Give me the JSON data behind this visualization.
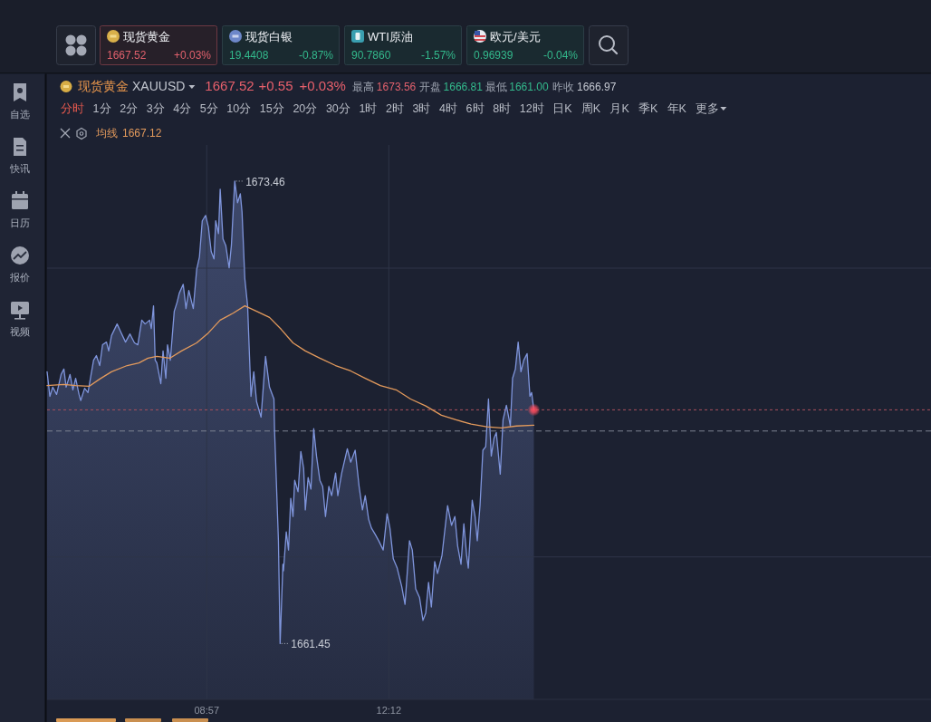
{
  "chart_data": {
    "type": "area",
    "title": "现货黄金",
    "subtitle": "XAUUSD",
    "annotations": [
      "现货黄金",
      "1667.52",
      "+0.03%",
      "现货白银",
      "19.4408",
      "-0.87%",
      "WTI原油",
      "90.7860",
      "-1.57%",
      "欧元/美元",
      "0.96939",
      "-0.04%",
      "1667.52",
      "+0.55",
      "+0.03%",
      "最高",
      "1673.56",
      "开盘",
      "1666.81",
      "最低",
      "1661.00",
      "昨收",
      "1666.97",
      "分时",
      "1分",
      "2分",
      "3分",
      "4分",
      "5分",
      "10分",
      "15分",
      "20分",
      "30分",
      "1时",
      "2时",
      "3时",
      "4时",
      "6时",
      "8时",
      "12时",
      "日K",
      "周K",
      "月K",
      "季K",
      "年K",
      "更多",
      "1667.12",
      "自选",
      "快讯",
      "日历",
      "报价",
      "视频"
    ],
    "xlim": [
      6.1,
      21.88
    ],
    "xticks": [
      {
        "value": 8.95,
        "label": "08:57"
      },
      {
        "value": 12.2,
        "label": "12:12"
      }
    ],
    "ylim": [
      1660.0,
      1674.4
    ],
    "yticks": [
      {
        "value": 1671.2,
        "label": null
      },
      {
        "value": 1663.7,
        "label": null
      }
    ],
    "tick_labels": "x",
    "grid": true,
    "legend": "top left",
    "ref_lines": [
      {
        "axis": "y",
        "value": 1667.52,
        "color": "#a8505c",
        "line_style": "dotted"
      },
      {
        "axis": "y",
        "value": 1666.97,
        "color": "#7d8291",
        "line_style": "dashed"
      }
    ],
    "series": [
      {
        "color": "#7f95dc",
        "x": [
          6.1,
          6.15,
          6.2,
          6.27,
          6.35,
          6.4,
          6.44,
          6.51,
          6.56,
          6.61,
          6.67,
          6.7,
          6.77,
          6.83,
          6.88,
          6.93,
          6.98,
          7.04,
          7.09,
          7.16,
          7.2,
          7.25,
          7.35,
          7.41,
          7.5,
          7.58,
          7.66,
          7.72,
          7.79,
          7.85,
          7.93,
          7.96,
          8.0,
          8.03,
          8.06,
          8.13,
          8.17,
          8.22,
          8.25,
          8.3,
          8.37,
          8.42,
          8.46,
          8.53,
          8.58,
          8.63,
          8.71,
          8.77,
          8.82,
          8.87,
          8.93,
          8.98,
          9.03,
          9.08,
          9.11,
          9.16,
          9.19,
          9.24,
          9.29,
          9.35,
          9.39,
          9.45,
          9.5,
          9.55,
          9.58,
          9.63,
          9.68,
          9.74,
          9.79,
          9.84,
          9.92,
          10.0,
          10.07,
          10.15,
          10.16,
          10.23,
          10.26,
          10.31,
          10.32,
          10.37,
          10.41,
          10.45,
          10.49,
          10.52,
          10.58,
          10.63,
          10.68,
          10.71,
          10.76,
          10.81,
          10.86,
          10.91,
          10.97,
          11.02,
          11.07,
          11.13,
          11.18,
          11.25,
          11.29,
          11.36,
          11.46,
          11.52,
          11.6,
          11.67,
          11.73,
          11.78,
          11.84,
          11.89,
          11.96,
          12.02,
          12.1,
          12.17,
          12.22,
          12.28,
          12.35,
          12.43,
          12.49,
          12.57,
          12.62,
          12.68,
          12.75,
          12.81,
          12.86,
          12.91,
          12.96,
          13.02,
          13.07,
          13.15,
          13.25,
          13.32,
          13.38,
          13.43,
          13.49,
          13.54,
          13.59,
          13.62,
          13.69,
          13.74,
          13.78,
          13.83,
          13.88,
          13.93,
          13.98,
          14.03,
          14.08,
          14.12,
          14.19,
          14.24,
          14.3,
          14.37,
          14.41,
          14.46,
          14.51,
          14.56,
          14.61,
          14.67,
          14.72,
          14.75,
          14.79
        ],
        "values": [
          1668.51,
          1667.87,
          1668.11,
          1667.92,
          1668.44,
          1668.58,
          1668.11,
          1668.44,
          1668.04,
          1668.34,
          1667.92,
          1667.76,
          1668.08,
          1667.97,
          1668.39,
          1668.81,
          1668.93,
          1668.67,
          1669.21,
          1669.28,
          1669.05,
          1669.45,
          1669.75,
          1669.56,
          1669.28,
          1669.49,
          1669.26,
          1669.21,
          1669.85,
          1669.75,
          1669.85,
          1669.63,
          1670.22,
          1668.81,
          1668.74,
          1668.2,
          1669.05,
          1668.34,
          1669.21,
          1668.81,
          1670.08,
          1670.31,
          1670.55,
          1670.78,
          1670.15,
          1670.62,
          1670.15,
          1671.16,
          1671.49,
          1672.43,
          1672.57,
          1672.26,
          1671.63,
          1671.44,
          1672.43,
          1672.1,
          1673.25,
          1671.96,
          1671.79,
          1671.21,
          1671.79,
          1673.46,
          1672.9,
          1673.13,
          1672.66,
          1670.93,
          1670.22,
          1667.87,
          1668.51,
          1667.73,
          1667.33,
          1668.91,
          1668.11,
          1667.8,
          1667.03,
          1664.12,
          1661.45,
          1663.51,
          1663.34,
          1664.35,
          1663.88,
          1665.22,
          1664.75,
          1665.69,
          1665.39,
          1666.44,
          1666.0,
          1664.92,
          1665.76,
          1665.46,
          1667.03,
          1666.32,
          1665.69,
          1665.53,
          1664.75,
          1665.53,
          1665.29,
          1665.88,
          1665.29,
          1665.88,
          1666.51,
          1666.16,
          1666.47,
          1665.53,
          1664.92,
          1665.29,
          1664.68,
          1664.45,
          1664.28,
          1664.12,
          1663.88,
          1664.82,
          1664.45,
          1663.65,
          1663.41,
          1662.94,
          1662.47,
          1664.12,
          1663.88,
          1662.87,
          1662.64,
          1662.05,
          1662.24,
          1663.04,
          1662.4,
          1663.58,
          1663.27,
          1663.74,
          1665.03,
          1664.52,
          1664.75,
          1663.98,
          1663.51,
          1664.56,
          1663.74,
          1663.41,
          1665.17,
          1664.75,
          1664.12,
          1665.06,
          1666.47,
          1666.56,
          1667.8,
          1666.32,
          1666.79,
          1666.93,
          1665.85,
          1667.26,
          1667.64,
          1667.1,
          1668.34,
          1668.58,
          1669.28,
          1668.51,
          1668.81,
          1668.98,
          1667.87,
          1667.97,
          1667.52
        ],
        "value_labels": [
          null,
          null,
          null,
          null,
          null,
          null,
          null,
          null,
          null,
          null,
          null,
          null,
          null,
          null,
          null,
          null,
          null,
          null,
          null,
          null,
          null,
          null,
          null,
          null,
          null,
          null,
          null,
          null,
          null,
          null,
          null,
          null,
          null,
          null,
          null,
          null,
          null,
          null,
          null,
          null,
          null,
          null,
          null,
          null,
          null,
          null,
          null,
          null,
          null,
          null,
          null,
          null,
          null,
          null,
          null,
          null,
          null,
          null,
          null,
          null,
          null,
          "1673.46",
          null,
          null,
          null,
          null,
          null,
          null,
          null,
          null,
          null,
          null,
          null,
          null,
          null,
          null,
          "1661.45",
          null,
          null,
          null,
          null,
          null,
          null,
          null,
          null,
          null,
          null,
          null,
          null,
          null,
          null,
          null,
          null,
          null,
          null,
          null,
          null,
          null,
          null,
          null,
          null,
          null,
          null,
          null,
          null,
          null,
          null,
          null,
          null,
          null,
          null,
          null,
          null,
          null,
          null,
          null,
          null,
          null,
          null,
          null,
          null,
          null,
          null,
          null,
          null,
          null,
          null,
          null,
          null,
          null,
          null,
          null,
          null,
          null,
          null,
          null,
          null,
          null,
          null,
          null,
          null,
          null,
          null,
          null,
          null,
          null,
          null,
          null,
          null,
          null,
          null,
          null,
          null,
          null,
          null,
          null,
          null,
          null,
          null
        ]
      },
      {
        "type": "line",
        "name": "均线",
        "color": "#e39a5c",
        "x": [
          6.1,
          6.4,
          6.61,
          6.85,
          7.04,
          7.25,
          7.53,
          7.74,
          7.9,
          8.06,
          8.29,
          8.5,
          8.77,
          8.98,
          9.19,
          9.42,
          9.63,
          9.84,
          10.07,
          10.28,
          10.49,
          10.71,
          10.97,
          11.25,
          11.52,
          11.78,
          12.05,
          12.33,
          12.59,
          12.86,
          13.14,
          13.4,
          13.67,
          13.95,
          14.21,
          14.48,
          14.79
        ],
        "values": [
          1668.15,
          1668.18,
          1668.15,
          1668.13,
          1668.32,
          1668.51,
          1668.67,
          1668.74,
          1668.86,
          1668.91,
          1668.86,
          1669.05,
          1669.26,
          1669.52,
          1669.85,
          1670.03,
          1670.22,
          1670.08,
          1669.92,
          1669.61,
          1669.26,
          1669.05,
          1668.86,
          1668.67,
          1668.53,
          1668.34,
          1668.15,
          1668.04,
          1667.8,
          1667.62,
          1667.38,
          1667.26,
          1667.15,
          1667.08,
          1667.05,
          1667.1,
          1667.12
        ]
      },
      {
        "type": "scatter",
        "color": "#ff4d5e",
        "x": [
          14.79
        ],
        "values": [
          1667.52
        ]
      }
    ]
  }
}
